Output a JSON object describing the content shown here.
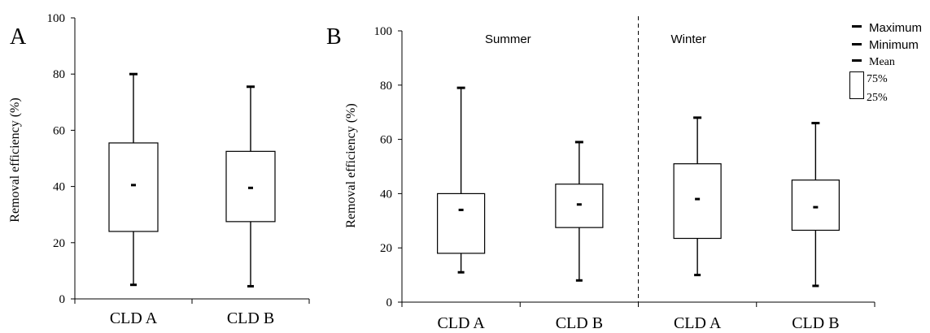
{
  "chart_data": [
    {
      "panel_label": "A",
      "type": "box",
      "categories": [
        "CLD A",
        "CLD B"
      ],
      "ylabel": "Removal  efficiency   (%)",
      "ylim": [
        0,
        100
      ],
      "yticks": [
        0,
        20,
        40,
        60,
        80,
        100
      ],
      "boxes": [
        {
          "category": "CLD A",
          "max": 80,
          "q3": 55.5,
          "mean": 40.5,
          "q1": 24,
          "min": 5
        },
        {
          "category": "CLD B",
          "max": 75.5,
          "q3": 52.5,
          "mean": 39.5,
          "q1": 27.5,
          "min": 4.5
        }
      ]
    },
    {
      "panel_label": "B",
      "type": "box",
      "categories": [
        "CLD  A",
        "CLD  B",
        "CLD  A",
        "CLD  B"
      ],
      "groups": [
        {
          "label": "Summer",
          "categories": [
            0,
            1
          ]
        },
        {
          "label": "Winter",
          "categories": [
            2,
            3
          ]
        }
      ],
      "ylabel": "Removal  efficiency   (%)",
      "ylim": [
        0,
        100
      ],
      "yticks": [
        0,
        20,
        40,
        60,
        80,
        100
      ],
      "boxes": [
        {
          "category": "CLD  A",
          "group": "Summer",
          "max": 79,
          "q3": 40,
          "mean": 34,
          "q1": 18,
          "min": 11
        },
        {
          "category": "CLD  B",
          "group": "Summer",
          "max": 59,
          "q3": 43.5,
          "mean": 36,
          "q1": 27.5,
          "min": 8
        },
        {
          "category": "CLD  A",
          "group": "Winter",
          "max": 68,
          "q3": 51,
          "mean": 38,
          "q1": 23.5,
          "min": 10
        },
        {
          "category": "CLD  B",
          "group": "Winter",
          "max": 66,
          "q3": 45,
          "mean": 35,
          "q1": 26.5,
          "min": 6
        }
      ]
    }
  ],
  "legend": {
    "maximum": "Maximum",
    "minimum": "Minimum",
    "mean": "Mean",
    "q75": "75%",
    "q25": "25%"
  }
}
